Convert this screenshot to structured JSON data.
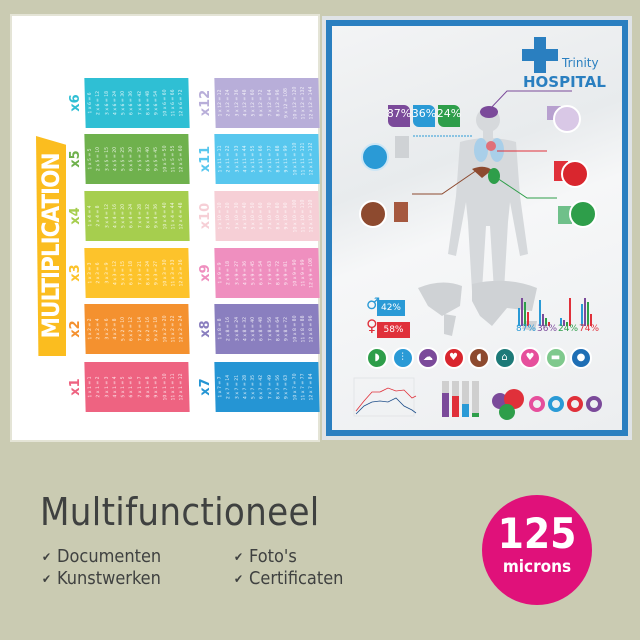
{
  "multiplication_poster": {
    "title": "MULTIPLICATION",
    "tables": [
      {
        "label": "x1",
        "color": "#ee6381",
        "lines": [
          "1 x 1 = 1",
          "2 x 1 = 2",
          "3 x 1 = 3",
          "4 x 1 = 4",
          "5 x 1 = 5",
          "6 x 1 = 6",
          "7 x 1 = 7",
          "8 x 1 = 8",
          "9 x 1 = 9",
          "10 x 1 = 10",
          "11 x 1 = 11",
          "12 x 1 = 12"
        ]
      },
      {
        "label": "x2",
        "color": "#f4912f",
        "lines": [
          "1 x 2 = 2",
          "2 x 2 = 4",
          "3 x 2 = 6",
          "4 x 2 = 8",
          "5 x 2 = 10",
          "6 x 2 = 12",
          "7 x 2 = 14",
          "8 x 2 = 16",
          "9 x 2 = 18",
          "10 x 2 = 20",
          "11 x 2 = 22",
          "12 x 2 = 24"
        ]
      },
      {
        "label": "x3",
        "color": "#fdc32b",
        "lines": [
          "1 x 3 = 3",
          "2 x 3 = 6",
          "3 x 3 = 9",
          "4 x 3 = 12",
          "5 x 3 = 15",
          "6 x 3 = 18",
          "7 x 3 = 21",
          "8 x 3 = 24",
          "9 x 3 = 27",
          "10 x 3 = 30",
          "11 x 3 = 33",
          "12 x 3 = 36"
        ]
      },
      {
        "label": "x4",
        "color": "#a6ce4e",
        "lines": [
          "1 x 4 = 4",
          "2 x 4 = 8",
          "3 x 4 = 12",
          "4 x 4 = 16",
          "5 x 4 = 20",
          "6 x 4 = 24",
          "7 x 4 = 28",
          "8 x 4 = 32",
          "9 x 4 = 36",
          "10 x 4 = 40",
          "11 x 4 = 44",
          "12 x 4 = 48"
        ]
      },
      {
        "label": "x5",
        "color": "#6fb14d",
        "lines": [
          "1 x 5 = 5",
          "2 x 5 = 10",
          "3 x 5 = 15",
          "4 x 5 = 20",
          "5 x 5 = 25",
          "6 x 5 = 30",
          "7 x 5 = 35",
          "8 x 5 = 40",
          "9 x 5 = 45",
          "10 x 5 = 50",
          "11 x 5 = 55",
          "12 x 5 = 60"
        ]
      },
      {
        "label": "x6",
        "color": "#2fbfd4",
        "lines": [
          "1 x 6 = 6",
          "2 x 6 = 12",
          "3 x 6 = 18",
          "4 x 6 = 24",
          "5 x 6 = 30",
          "6 x 6 = 36",
          "7 x 6 = 42",
          "8 x 6 = 48",
          "9 x 6 = 54",
          "10 x 6 = 60",
          "11 x 6 = 66",
          "12 x 6 = 72"
        ]
      },
      {
        "label": "x7",
        "color": "#2595d4",
        "lines": [
          "1 x 7 = 7",
          "2 x 7 = 14",
          "3 x 7 = 21",
          "4 x 7 = 28",
          "5 x 7 = 35",
          "6 x 7 = 42",
          "7 x 7 = 49",
          "8 x 7 = 56",
          "9 x 7 = 63",
          "10 x 7 = 70",
          "11 x 7 = 77",
          "12 x 7 = 84"
        ]
      },
      {
        "label": "x8",
        "color": "#8a7fbf",
        "lines": [
          "1 x 8 = 8",
          "2 x 8 = 16",
          "3 x 8 = 24",
          "4 x 8 = 32",
          "5 x 8 = 40",
          "6 x 8 = 48",
          "7 x 8 = 56",
          "8 x 8 = 64",
          "9 x 8 = 72",
          "10 x 8 = 80",
          "11 x 8 = 88",
          "12 x 8 = 96"
        ]
      },
      {
        "label": "x9",
        "color": "#ef8fbf",
        "lines": [
          "1 x 9 = 9",
          "2 x 9 = 18",
          "3 x 9 = 27",
          "4 x 9 = 36",
          "5 x 9 = 45",
          "6 x 9 = 54",
          "7 x 9 = 63",
          "8 x 9 = 72",
          "9 x 9 = 81",
          "10 x 9 = 90",
          "11 x 9 = 99",
          "12 x 9 = 108"
        ]
      },
      {
        "label": "x10",
        "color": "#f6cfd6",
        "lines": [
          "1 x 10 = 10",
          "2 x 10 = 20",
          "3 x 10 = 30",
          "4 x 10 = 40",
          "5 x 10 = 50",
          "6 x 10 = 60",
          "7 x 10 = 70",
          "8 x 10 = 80",
          "9 x 10 = 90",
          "10 x 10 = 100",
          "11 x 10 = 110",
          "12 x 10 = 120"
        ]
      },
      {
        "label": "x11",
        "color": "#58c7ee",
        "lines": [
          "1 x 11 = 11",
          "2 x 11 = 22",
          "3 x 11 = 33",
          "4 x 11 = 44",
          "5 x 11 = 55",
          "6 x 11 = 66",
          "7 x 11 = 77",
          "8 x 11 = 88",
          "9 x 11 = 99",
          "10 x 11 = 110",
          "11 x 11 = 121",
          "12 x 11 = 132"
        ]
      },
      {
        "label": "x12",
        "color": "#b8aed9",
        "lines": [
          "1 x 12 = 12",
          "2 x 12 = 24",
          "3 x 12 = 36",
          "4 x 12 = 48",
          "5 x 12 = 60",
          "6 x 12 = 72",
          "7 x 12 = 84",
          "8 x 12 = 96",
          "9 x 12 = 108",
          "10 x 12 = 120",
          "11 x 12 = 132",
          "12 x 12 = 144"
        ]
      }
    ]
  },
  "hospital_poster": {
    "name_small": "Trinity",
    "name_large": "HOSPITAL",
    "accent": "#2a7fc0",
    "top_stats": [
      {
        "value": "87%",
        "color": "#7b4a9a"
      },
      {
        "value": "36%",
        "color": "#2a9ad6"
      },
      {
        "value": "24%",
        "color": "#2e9e4a"
      }
    ],
    "gender_stats": [
      {
        "value": "42%",
        "color": "#2a9ad6",
        "icon": "man-icon"
      },
      {
        "value": "58%",
        "color": "#e0303a",
        "icon": "woman-icon"
      }
    ],
    "bar_groups": [
      {
        "label": "87%",
        "color": "#2a9ad6"
      },
      {
        "label": "36%",
        "color": "#7b4a9a"
      },
      {
        "label": "24%",
        "color": "#2e9e4a"
      },
      {
        "label": "74%",
        "color": "#e0303a"
      }
    ],
    "organ_icons": [
      {
        "name": "stomach-icon",
        "color": "#2e9e4a"
      },
      {
        "name": "lungs-icon",
        "color": "#2a9ad6"
      },
      {
        "name": "brain-icon",
        "color": "#7b4a9a"
      },
      {
        "name": "heart-organ-icon",
        "color": "#d9262e"
      },
      {
        "name": "liver-icon",
        "color": "#8d4a2f"
      },
      {
        "name": "tooth-icon",
        "color": "#1d7a78"
      },
      {
        "name": "heart-icon",
        "color": "#e64f9c"
      },
      {
        "name": "bed-icon",
        "color": "#7fc98d"
      },
      {
        "name": "apple-icon",
        "color": "#1f6fb5"
      }
    ]
  },
  "features": {
    "title": "Multifunctioneel",
    "items": [
      "Documenten",
      "Kunstwerken",
      "Foto's",
      "Certificaten"
    ],
    "check_icon": "check-icon"
  },
  "badge": {
    "value": "125",
    "unit": "microns",
    "color": "#e0117a"
  }
}
